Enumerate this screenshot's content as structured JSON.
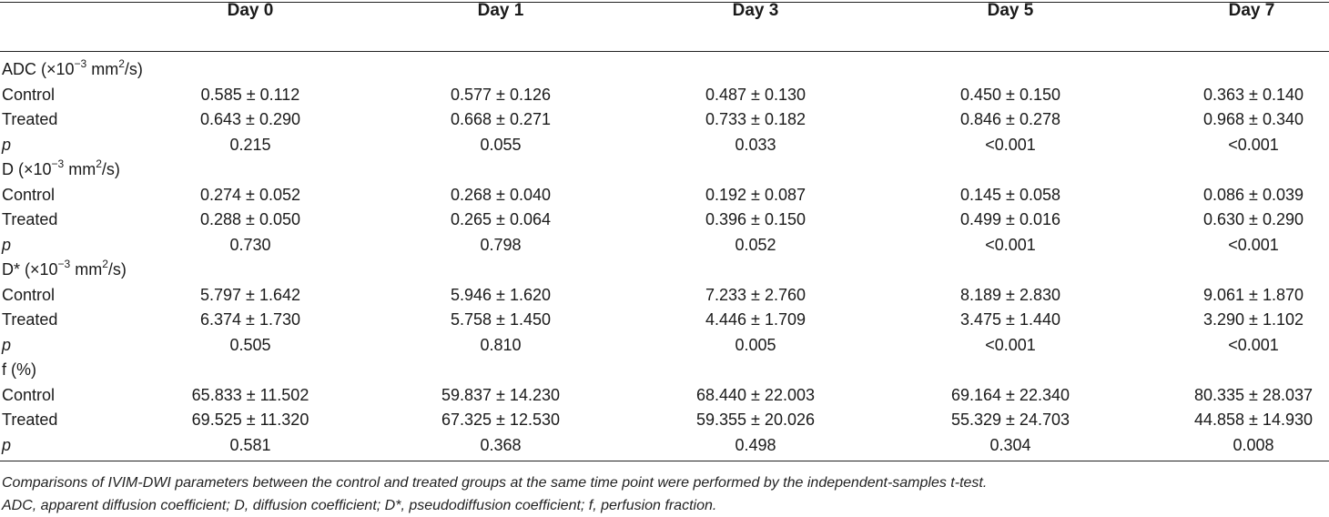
{
  "table": {
    "columns": [
      "Day 0",
      "Day 1",
      "Day 3",
      "Day 5",
      "Day 7"
    ],
    "sections": [
      {
        "heading_pre": "ADC (×10",
        "heading_sup1": "−3",
        "heading_mid": " mm",
        "heading_sup2": "2",
        "heading_post": "/s)",
        "rows": [
          {
            "label": "Control",
            "values": [
              "0.585 ± 0.112",
              "0.577 ± 0.126",
              "0.487 ± 0.130",
              "0.450 ± 0.150",
              "0.363 ± 0.140"
            ]
          },
          {
            "label": "Treated",
            "values": [
              "0.643 ± 0.290",
              "0.668 ± 0.271",
              "0.733 ± 0.182",
              "0.846 ± 0.278",
              "0.968 ± 0.340"
            ]
          },
          {
            "label": "p",
            "values": [
              "0.215",
              "0.055",
              "0.033",
              "<0.001",
              "<0.001"
            ]
          }
        ]
      },
      {
        "heading_pre": "D (×10",
        "heading_sup1": "−3",
        "heading_mid": " mm",
        "heading_sup2": "2",
        "heading_post": "/s)",
        "rows": [
          {
            "label": "Control",
            "values": [
              "0.274 ± 0.052",
              "0.268 ± 0.040",
              "0.192 ± 0.087",
              "0.145 ± 0.058",
              "0.086 ± 0.039"
            ]
          },
          {
            "label": "Treated",
            "values": [
              "0.288 ± 0.050",
              "0.265 ± 0.064",
              "0.396 ± 0.150",
              "0.499 ± 0.016",
              "0.630 ± 0.290"
            ]
          },
          {
            "label": "p",
            "values": [
              "0.730",
              "0.798",
              "0.052",
              "<0.001",
              "<0.001"
            ]
          }
        ]
      },
      {
        "heading_pre": "D* (×10",
        "heading_sup1": "−3",
        "heading_mid": " mm",
        "heading_sup2": "2",
        "heading_post": "/s)",
        "rows": [
          {
            "label": "Control",
            "values": [
              "5.797 ± 1.642",
              "5.946 ± 1.620",
              "7.233 ± 2.760",
              "8.189 ± 2.830",
              "9.061 ± 1.870"
            ]
          },
          {
            "label": "Treated",
            "values": [
              "6.374 ± 1.730",
              "5.758 ± 1.450",
              "4.446 ± 1.709",
              "3.475 ± 1.440",
              "3.290 ± 1.102"
            ]
          },
          {
            "label": "p",
            "values": [
              "0.505",
              "0.810",
              "0.005",
              "<0.001",
              "<0.001"
            ]
          }
        ]
      },
      {
        "heading_pre": "f (%)",
        "heading_sup1": "",
        "heading_mid": "",
        "heading_sup2": "",
        "heading_post": "",
        "rows": [
          {
            "label": "Control",
            "values": [
              "65.833 ± 11.502",
              "59.837 ± 14.230",
              "68.440 ± 22.003",
              "69.164 ± 22.340",
              "80.335 ± 28.037"
            ]
          },
          {
            "label": "Treated",
            "values": [
              "69.525 ± 11.320",
              "67.325 ± 12.530",
              "59.355 ± 20.026",
              "55.329 ± 24.703",
              "44.858 ± 14.930"
            ]
          },
          {
            "label": "p",
            "values": [
              "0.581",
              "0.368",
              "0.498",
              "0.304",
              "0.008"
            ]
          }
        ]
      }
    ]
  },
  "footnotes": [
    "Comparisons of IVIM-DWI parameters between the control and treated groups at the same time point were performed by the independent-samples t-test.",
    "ADC, apparent diffusion coefficient; D, diffusion coefficient; D*, pseudodiffusion coefficient; f, perfusion fraction."
  ]
}
